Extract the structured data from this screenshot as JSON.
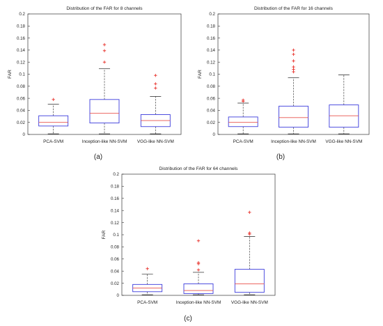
{
  "chart_data": [
    {
      "type": "box",
      "title": "Distribution of the FAR for 8 channels",
      "ylabel": "FAR",
      "ylim": [
        0,
        0.2
      ],
      "yticks": [
        "0",
        "0.02",
        "0.04",
        "0.06",
        "0.08",
        "0.1",
        "0.12",
        "0.14",
        "0.16",
        "0.18",
        "0.2"
      ],
      "categories": [
        "PCA-SVM",
        "Inception-like NN-SVM",
        "VGG-like NN-SVM"
      ],
      "boxes": [
        {
          "whisker_low": 0.001,
          "q1": 0.014,
          "median": 0.02,
          "q3": 0.031,
          "whisker_high": 0.05,
          "outliers": [
            0.058
          ]
        },
        {
          "whisker_low": 0.001,
          "q1": 0.019,
          "median": 0.035,
          "q3": 0.058,
          "whisker_high": 0.109,
          "outliers": [
            0.12,
            0.139,
            0.149
          ]
        },
        {
          "whisker_low": 0.001,
          "q1": 0.013,
          "median": 0.023,
          "q3": 0.033,
          "whisker_high": 0.063,
          "outliers": [
            0.077,
            0.084,
            0.098
          ]
        }
      ],
      "caption": "(a)"
    },
    {
      "type": "box",
      "title": "Distribution of the FAR for 16 channels",
      "ylabel": "FAR",
      "ylim": [
        0,
        0.2
      ],
      "yticks": [
        "0",
        "0.02",
        "0.04",
        "0.06",
        "0.08",
        "0.1",
        "0.12",
        "0.14",
        "0.16",
        "0.18",
        "0.2"
      ],
      "categories": [
        "PCA-SVM",
        "Inception-like NN-SVM",
        "VGG-like NN-SVM"
      ],
      "boxes": [
        {
          "whisker_low": 0.001,
          "q1": 0.013,
          "median": 0.02,
          "q3": 0.029,
          "whisker_high": 0.052,
          "outliers": [
            0.055,
            0.057
          ]
        },
        {
          "whisker_low": 0.001,
          "q1": 0.012,
          "median": 0.028,
          "q3": 0.047,
          "whisker_high": 0.094,
          "outliers": [
            0.104,
            0.108,
            0.112,
            0.122,
            0.133,
            0.14
          ]
        },
        {
          "whisker_low": 0.001,
          "q1": 0.012,
          "median": 0.031,
          "q3": 0.049,
          "whisker_high": 0.099,
          "outliers": []
        }
      ],
      "caption": "(b)"
    },
    {
      "type": "box",
      "title": "Distribution of the FAR for 64 channels",
      "ylabel": "FAR",
      "ylim": [
        0,
        0.2
      ],
      "yticks": [
        "0",
        "0.02",
        "0.04",
        "0.06",
        "0.08",
        "0.1",
        "0.12",
        "0.14",
        "0.16",
        "0.18",
        "0.2"
      ],
      "categories": [
        "PCA-SVM",
        "Inception-like NN-SVM",
        "VGG-like NN-SVM"
      ],
      "boxes": [
        {
          "whisker_low": 0.001,
          "q1": 0.006,
          "median": 0.012,
          "q3": 0.018,
          "whisker_high": 0.035,
          "outliers": [
            0.044
          ]
        },
        {
          "whisker_low": 0.001,
          "q1": 0.003,
          "median": 0.008,
          "q3": 0.019,
          "whisker_high": 0.038,
          "outliers": [
            0.042,
            0.052,
            0.054,
            0.09
          ]
        },
        {
          "whisker_low": 0.001,
          "q1": 0.005,
          "median": 0.019,
          "q3": 0.043,
          "whisker_high": 0.097,
          "outliers": [
            0.101,
            0.103,
            0.137
          ]
        }
      ],
      "caption": "(c)"
    }
  ],
  "colors": {
    "box": "#3b3bdc",
    "median": "#e8504a",
    "whisker": "#222222",
    "outlier": "#e8302a",
    "axis": "#333333",
    "text": "#222222"
  }
}
